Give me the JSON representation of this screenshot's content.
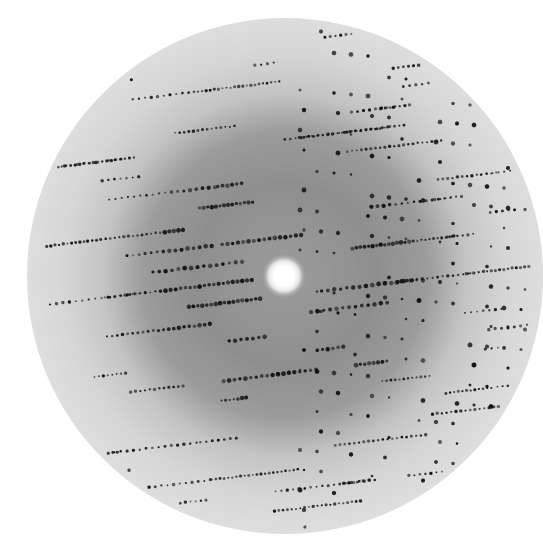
{
  "image": {
    "subject": "diffraction-pattern",
    "colors": {
      "background": "#ffffff",
      "detector_face": "#dcdcdc",
      "diffuse_ring": "#8a8a8a",
      "spot": "#111111",
      "beamstop_glow": "#ffffff"
    }
  }
}
